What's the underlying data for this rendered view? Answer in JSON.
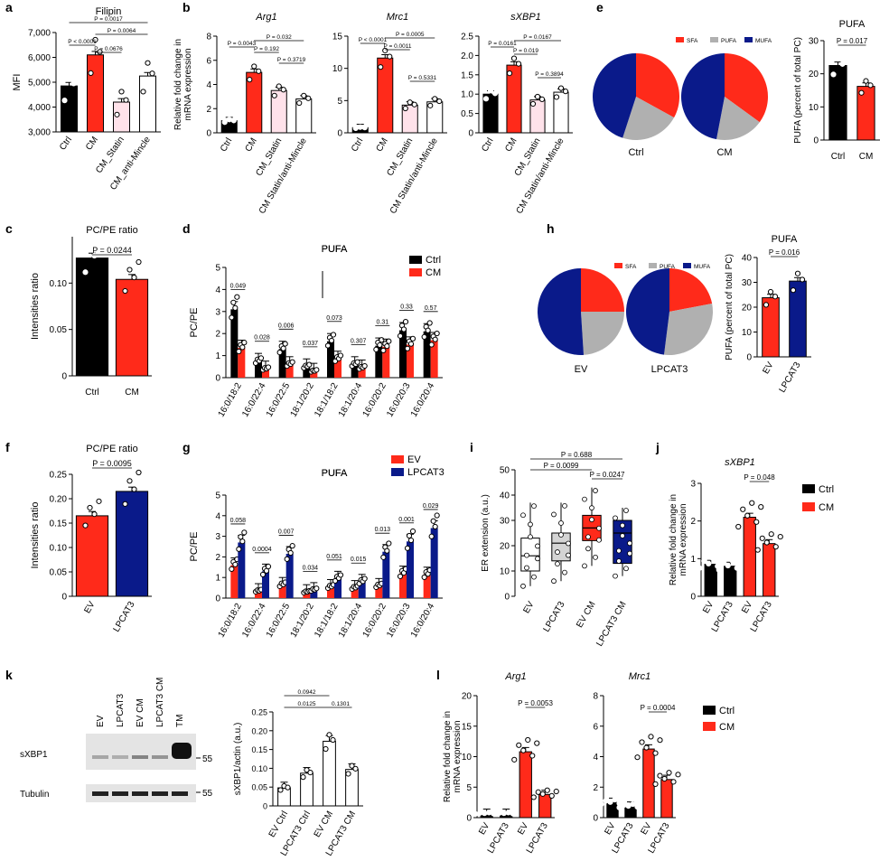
{
  "colors": {
    "black": "#000000",
    "red": "#ff2a1a",
    "navy": "#0a1a8a",
    "pink": "#ffe2ea",
    "gray": "#b0b0b0",
    "white": "#ffffff"
  },
  "panel_letters": [
    "a",
    "b",
    "c",
    "d",
    "e",
    "f",
    "g",
    "h",
    "i",
    "j",
    "k",
    "l"
  ],
  "chart_data": [
    {
      "id": "a",
      "type": "bar",
      "title": "Filipin",
      "ylabel": "MFI",
      "categories": [
        "Ctrl",
        "CM",
        "CM_Statin",
        "CM_anti-Mincle"
      ],
      "values": [
        4850,
        6100,
        4200,
        5250
      ],
      "ylim": [
        3000,
        7000
      ],
      "yticks": [
        "3,000",
        "4,000",
        "5,000",
        "6,000",
        "7,000"
      ],
      "fills": [
        "black",
        "red",
        "pink",
        "white"
      ],
      "pvalues": [
        "P < 0.0001",
        "P = 0.0676",
        "P = 0.0064",
        "P = 0.0017"
      ]
    },
    {
      "id": "b1",
      "type": "bar",
      "title": "Arg1",
      "ylabel": "Relative fold change in mRNA expression",
      "categories": [
        "Ctrl",
        "CM",
        "CM_Statin",
        "CM Statin/anti-Mincle"
      ],
      "values": [
        1.0,
        5.0,
        3.5,
        2.8
      ],
      "ylim": [
        0,
        8
      ],
      "yticks": [
        "0",
        "2",
        "4",
        "6",
        "8"
      ],
      "fills": [
        "black",
        "red",
        "pink",
        "white"
      ],
      "pvalues": [
        "P = 0.0043",
        "P = 0.032",
        "P = 0.192",
        "P = 0.3719"
      ]
    },
    {
      "id": "b2",
      "type": "bar",
      "title": "Mrc1",
      "categories": [
        "Ctrl",
        "CM",
        "CM_Statin",
        "CM Statin/anti-Mincle"
      ],
      "values": [
        0.8,
        11.6,
        4.3,
        4.8
      ],
      "ylim": [
        0,
        15
      ],
      "yticks": [
        "0",
        "5",
        "10",
        "15"
      ],
      "fills": [
        "black",
        "red",
        "pink",
        "white"
      ],
      "pvalues": [
        "P < 0.0001",
        "P = 0.0005",
        "P = 0.0011",
        "P = 0.5331"
      ]
    },
    {
      "id": "b3",
      "type": "bar",
      "title": "sXBP1",
      "categories": [
        "Ctrl",
        "CM",
        "CM_Statin",
        "CM Statin/anti-Mincle"
      ],
      "values": [
        1.0,
        1.75,
        0.85,
        1.05
      ],
      "ylim": [
        0,
        2.5
      ],
      "yticks": [
        "0",
        "0.5",
        "1.0",
        "1.5",
        "2.0",
        "2.5"
      ],
      "fills": [
        "black",
        "red",
        "pink",
        "white"
      ],
      "pvalues": [
        "P = 0.0161",
        "P = 0.0167",
        "P = 0.019",
        "P = 0.3894"
      ]
    },
    {
      "id": "e_pie",
      "type": "pie",
      "legend": [
        "SFA",
        "PUFA",
        "MUFA"
      ],
      "pies": [
        {
          "label": "Ctrl",
          "values": [
            33,
            22,
            45
          ]
        },
        {
          "label": "CM",
          "values": [
            35,
            18,
            47
          ]
        }
      ]
    },
    {
      "id": "e_bar",
      "type": "bar",
      "title": "PUFA",
      "ylabel": "PUFA (percent of total PC)",
      "categories": [
        "Ctrl",
        "CM"
      ],
      "values": [
        22.5,
        16.2
      ],
      "ylim": [
        0,
        30
      ],
      "yticks": [
        "0",
        "10",
        "20",
        "30"
      ],
      "fills": [
        "black",
        "red"
      ],
      "pvalues": [
        "P = 0.017"
      ]
    },
    {
      "id": "c",
      "type": "bar",
      "title": "PC/PE ratio",
      "ylabel": "Intensities ratio",
      "categories": [
        "Ctrl",
        "CM"
      ],
      "values": [
        0.127,
        0.104
      ],
      "ylim": [
        0,
        0.15
      ],
      "yticks": [
        "0",
        "0.05",
        "0.10"
      ],
      "fills": [
        "black",
        "red"
      ],
      "pvalues": [
        "P = 0.0244"
      ]
    },
    {
      "id": "d",
      "type": "bar",
      "title": "PUFA",
      "ylabel": "PC/PE",
      "categories": [
        "16:0/18:2",
        "16:0/22:4",
        "16:0/22:5",
        "18:1/20:2",
        "18:1/18:2",
        "18:1/20:4",
        "16:0/20:2",
        "16:0/20:3",
        "16:0/20:4"
      ],
      "series": [
        {
          "name": "Ctrl",
          "values": [
            3.1,
            0.75,
            1.3,
            0.5,
            1.65,
            0.6,
            1.45,
            2.15,
            2.1
          ]
        },
        {
          "name": "CM",
          "values": [
            1.35,
            0.4,
            0.6,
            0.3,
            0.85,
            0.45,
            1.4,
            1.5,
            1.7
          ]
        }
      ],
      "ylim": [
        0,
        5
      ],
      "yticks": [
        "0",
        "1",
        "2",
        "3",
        "4",
        "5"
      ],
      "pvalues": [
        "0.049",
        "0.028",
        "0.006",
        "0.037",
        "0.073",
        "0.307",
        "0.31",
        "0.33",
        "0.57"
      ]
    },
    {
      "id": "h_pie",
      "type": "pie",
      "legend": [
        "SFA",
        "PUFA",
        "MUFA"
      ],
      "pies": [
        {
          "label": "EV",
          "values": [
            25,
            24,
            51
          ]
        },
        {
          "label": "LPCAT3",
          "values": [
            22,
            30,
            48
          ]
        }
      ]
    },
    {
      "id": "h_bar",
      "type": "bar",
      "title": "PUFA",
      "ylabel": "PUFA (percent of total PC)",
      "categories": [
        "EV",
        "LPCAT3"
      ],
      "values": [
        23.8,
        30.5
      ],
      "ylim": [
        0,
        40
      ],
      "yticks": [
        "0",
        "10",
        "20",
        "30",
        "40"
      ],
      "fills": [
        "red",
        "navy"
      ],
      "pvalues": [
        "P = 0.016"
      ]
    },
    {
      "id": "f",
      "type": "bar",
      "title": "PC/PE ratio",
      "ylabel": "Intensities ratio",
      "categories": [
        "EV",
        "LPCAT3"
      ],
      "values": [
        0.165,
        0.215
      ],
      "ylim": [
        0,
        0.25
      ],
      "yticks": [
        "0",
        "0.05",
        "0.10",
        "0.15",
        "0.20",
        "0.25"
      ],
      "fills": [
        "red",
        "navy"
      ],
      "pvalues": [
        "P = 0.0095"
      ]
    },
    {
      "id": "g",
      "type": "bar",
      "title": "PUFA",
      "ylabel": "PC/PE",
      "categories": [
        "16:0/18:2",
        "16:0/22:4",
        "16:0/22:5",
        "18:1/20:2",
        "18:1/18:2",
        "18:1/20:4",
        "16:0/20:2",
        "16:0/20:3",
        "16:0/20:4"
      ],
      "series": [
        {
          "name": "EV",
          "values": [
            1.6,
            0.35,
            0.65,
            0.3,
            0.55,
            0.5,
            0.6,
            1.2,
            1.15
          ]
        },
        {
          "name": "LPCAT3",
          "values": [
            2.7,
            1.3,
            2.15,
            0.4,
            0.95,
            0.8,
            2.25,
            2.75,
            3.4
          ]
        }
      ],
      "ylim": [
        0,
        5
      ],
      "yticks": [
        "0",
        "1",
        "2",
        "3",
        "4",
        "5"
      ],
      "pvalues": [
        "0.058",
        "0.0004",
        "0.007",
        "0.034",
        "0.051",
        "0.015",
        "0.013",
        "0.001",
        "0.029"
      ]
    },
    {
      "id": "i",
      "type": "box",
      "ylabel": "ER extension (a.u.)",
      "categories": [
        "EV",
        "LPCAT3",
        "EV CM",
        "LPCAT3 CM"
      ],
      "boxes": [
        {
          "min": 4,
          "q1": 10,
          "median": 16,
          "q3": 23,
          "max": 37
        },
        {
          "min": 6,
          "q1": 14,
          "median": 21,
          "q3": 25,
          "max": 37
        },
        {
          "min": 12,
          "q1": 22,
          "median": 27,
          "q3": 32,
          "max": 43
        },
        {
          "min": 8,
          "q1": 13,
          "median": 25,
          "q3": 30,
          "max": 35
        }
      ],
      "ylim": [
        0,
        50
      ],
      "yticks": [
        "0",
        "10",
        "20",
        "30",
        "40",
        "50"
      ],
      "pvalues": [
        "P = 0.688",
        "P = 0.0099",
        "P = 0.0247"
      ]
    },
    {
      "id": "j",
      "type": "bar",
      "title": "sXBP1",
      "ylabel": "Relative fold change in mRNA expression",
      "categories": [
        "EV",
        "LPCAT3",
        "EV",
        "LPCAT3"
      ],
      "groups": [
        "Ctrl",
        "CM"
      ],
      "values": [
        0.85,
        0.8,
        2.1,
        1.4
      ],
      "ylim": [
        0,
        3
      ],
      "yticks": [
        "0",
        "1",
        "2",
        "3"
      ],
      "fills": [
        "black",
        "black",
        "red",
        "red"
      ],
      "pvalues": [
        "P = 0.048"
      ]
    },
    {
      "id": "k",
      "type": "bar",
      "ylabel": "sXBP1/actin (a.u.)",
      "categories": [
        "EV Ctrl",
        "LPCAT3 Ctrl",
        "EV CM",
        "LPCAT3 CM"
      ],
      "values": [
        0.048,
        0.087,
        0.172,
        0.097
      ],
      "ylim": [
        0,
        0.25
      ],
      "yticks": [
        "0",
        "0.05",
        "0.10",
        "0.15",
        "0.20",
        "0.25"
      ],
      "pvalues": [
        "0.0942",
        "0.0125",
        "0.1301"
      ],
      "blot": {
        "lanes": [
          "EV",
          "LPCAT3",
          "EV CM",
          "LPCAT3 CM",
          "TM"
        ],
        "rows": [
          "sXBP1",
          "Tubulin"
        ],
        "marker": "55"
      }
    },
    {
      "id": "l1",
      "type": "bar",
      "title": "Arg1",
      "ylabel": "Relative fold change in mRNA expression",
      "categories": [
        "EV",
        "LPCAT3",
        "EV",
        "LPCAT3"
      ],
      "groups": [
        "Ctrl",
        "CM"
      ],
      "values": [
        0.7,
        0.7,
        10.8,
        3.8
      ],
      "ylim": [
        0,
        20
      ],
      "yticks": [
        "0",
        "5",
        "10",
        "15",
        "20"
      ],
      "fills": [
        "black",
        "black",
        "red",
        "red"
      ],
      "pvalues": [
        "P = 0.0053"
      ]
    },
    {
      "id": "l2",
      "type": "bar",
      "title": "Mrc1",
      "categories": [
        "EV",
        "LPCAT3",
        "EV",
        "LPCAT3"
      ],
      "groups": [
        "Ctrl",
        "CM"
      ],
      "values": [
        1.0,
        0.75,
        4.5,
        2.5
      ],
      "ylim": [
        0,
        8
      ],
      "yticks": [
        "0",
        "2",
        "4",
        "6",
        "8"
      ],
      "fills": [
        "black",
        "black",
        "red",
        "red"
      ],
      "pvalues": [
        "P = 0.0004"
      ]
    }
  ]
}
